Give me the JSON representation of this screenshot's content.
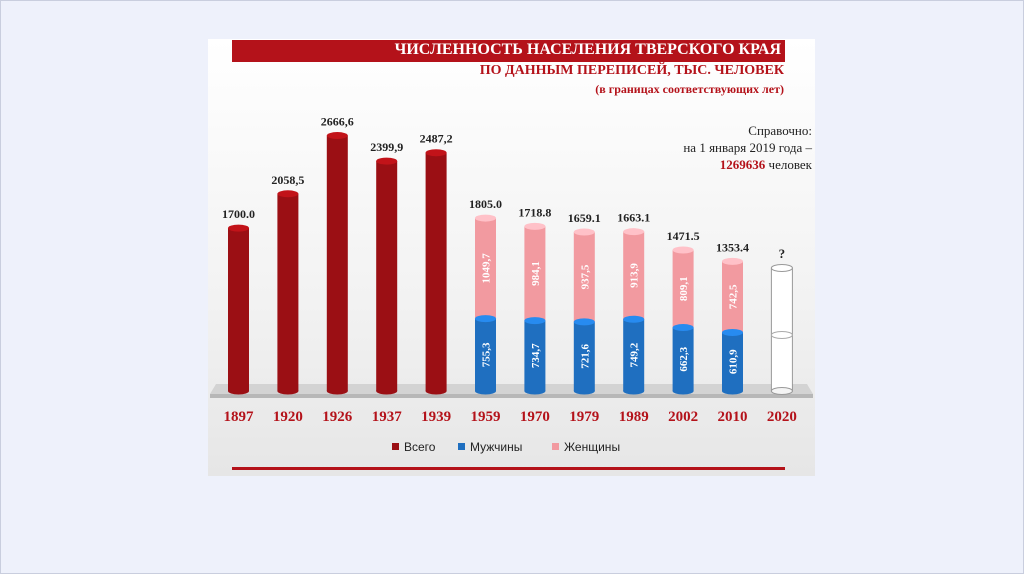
{
  "header": {
    "title": "ЧИСЛЕННОСТЬ НАСЕЛЕНИЯ ТВЕРСКОГО КРАЯ",
    "subtitle": "ПО ДАННЫМ ПЕРЕПИСЕЙ, ТЫС. ЧЕЛОВЕК",
    "subtitle2": "(в границах соответствующих лет)"
  },
  "note": {
    "line1": "Справочно:",
    "line2": "на 1 января 2019 года –",
    "value": "1269636",
    "unit": "человек"
  },
  "colors": {
    "total": "#9b0f14",
    "men": "#1f6fc0",
    "women": "#f29aa0",
    "accent": "#b4121a"
  },
  "chart_data": {
    "type": "bar",
    "title": "ЧИСЛЕННОСТЬ НАСЕЛЕНИЯ ТВЕРСКОГО КРАЯ",
    "xlabel": "",
    "ylabel": "",
    "ylim": [
      0,
      3000
    ],
    "categories": [
      "1897",
      "1920",
      "1926",
      "1937",
      "1939",
      "1959",
      "1970",
      "1979",
      "1989",
      "2002",
      "2010",
      "2020"
    ],
    "totals": [
      1700.0,
      2058.5,
      2666.6,
      2399.9,
      2487.2,
      1805.0,
      1718.8,
      1659.1,
      1663.1,
      1471.5,
      1353.4,
      null
    ],
    "total_labels": [
      "1700.0",
      "2058,5",
      "2666,6",
      "2399,9",
      "2487,2",
      "1805.0",
      "1718.8",
      "1659.1",
      "1663.1",
      "1471.5",
      "1353.4",
      "?"
    ],
    "series": [
      {
        "name": "Всего",
        "values": [
          1700.0,
          2058.5,
          2666.6,
          2399.9,
          2487.2,
          null,
          null,
          null,
          null,
          null,
          null,
          null
        ]
      },
      {
        "name": "Мужчины",
        "values": [
          null,
          null,
          null,
          null,
          null,
          755.3,
          734.7,
          721.6,
          749.2,
          662.3,
          610.9,
          null
        ],
        "labels": [
          "",
          "",
          "",
          "",
          "",
          "755,3",
          "734,7",
          "721,6",
          "749,2",
          "662,3",
          "610,9",
          ""
        ]
      },
      {
        "name": "Женщины",
        "values": [
          null,
          null,
          null,
          null,
          null,
          1049.7,
          984.1,
          937.5,
          913.9,
          809.1,
          742.5,
          null
        ],
        "labels": [
          "",
          "",
          "",
          "",
          "",
          "1049,7",
          "984,1",
          "937,5",
          "913,9",
          "809,1",
          "742,5",
          ""
        ]
      }
    ],
    "placeholder_category": "2020",
    "legend": "bottom",
    "grid": false
  }
}
